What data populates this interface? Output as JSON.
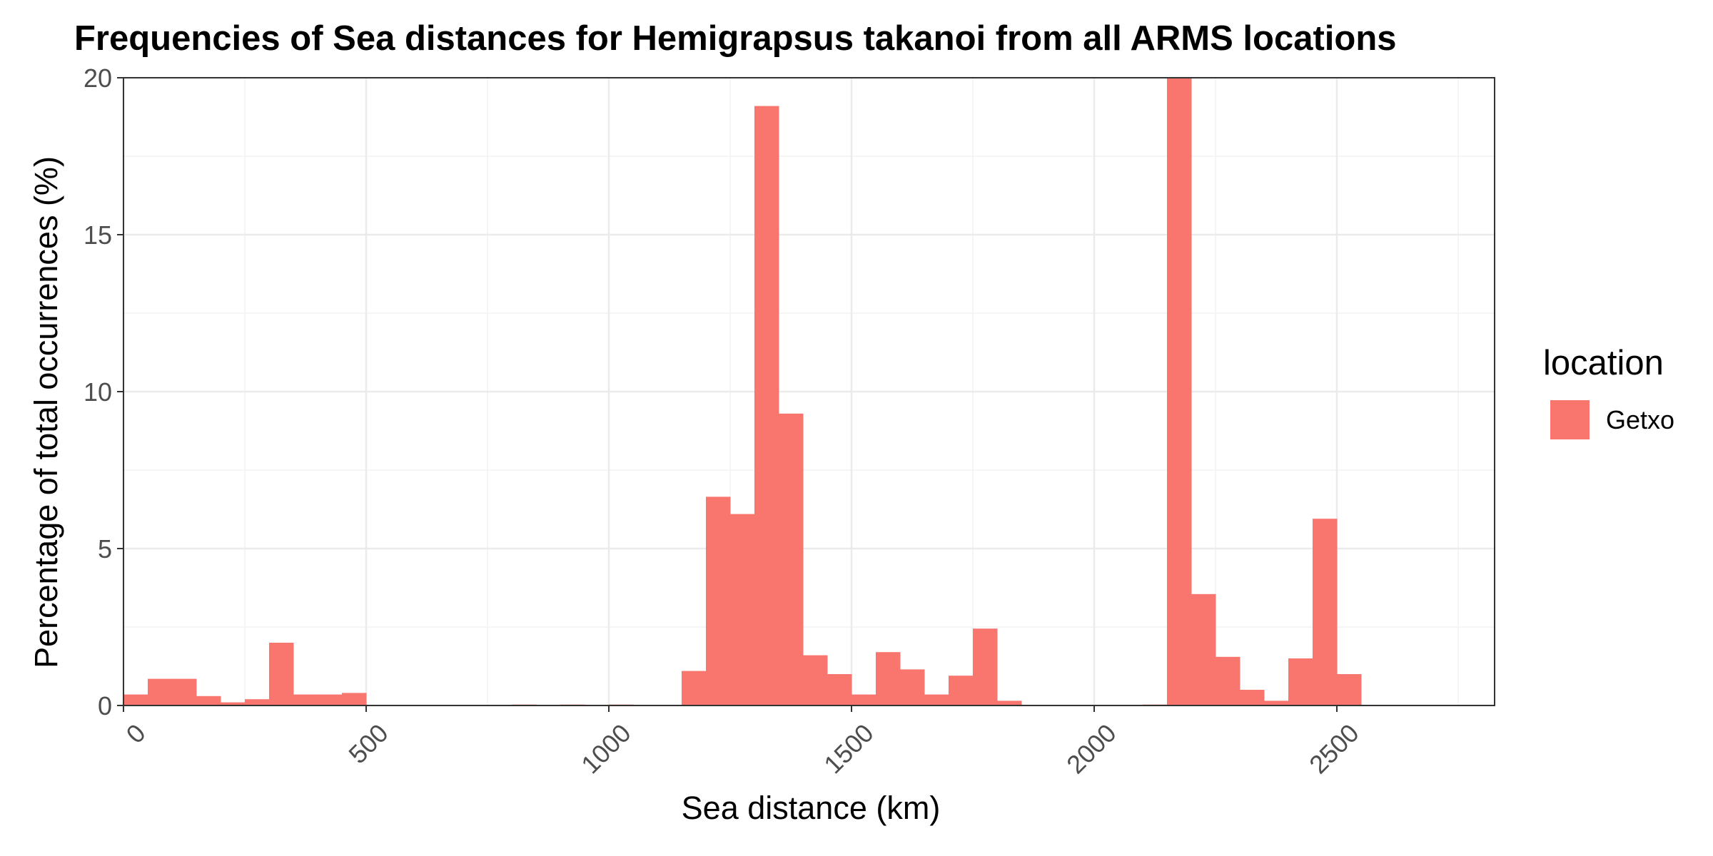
{
  "chart_data": {
    "type": "bar",
    "title": "Frequencies of Sea distances for Hemigrapsus takanoi from all ARMS locations",
    "xlabel": "Sea distance (km)",
    "ylabel": "Percentage of total occurrences (%)",
    "xlim": [
      0,
      2825
    ],
    "ylim": [
      0,
      20
    ],
    "x_ticks": [
      0,
      500,
      1000,
      1500,
      2000,
      2500
    ],
    "x_tick_labels": [
      "0",
      "500",
      "1000",
      "1500",
      "2000",
      "2500"
    ],
    "y_ticks": [
      0,
      5,
      10,
      15,
      20
    ],
    "y_tick_labels": [
      "0",
      "5",
      "10",
      "15",
      "20"
    ],
    "grid": true,
    "legend_title": "location",
    "legend_position": "right",
    "bin_width": 50,
    "series": [
      {
        "name": "Getxo",
        "color": "#F8766D",
        "bins": [
          {
            "start": 0,
            "value": 0.35
          },
          {
            "start": 50,
            "value": 0.85
          },
          {
            "start": 100,
            "value": 0.85
          },
          {
            "start": 150,
            "value": 0.3
          },
          {
            "start": 200,
            "value": 0.1
          },
          {
            "start": 250,
            "value": 0.2
          },
          {
            "start": 300,
            "value": 2.0
          },
          {
            "start": 350,
            "value": 0.35
          },
          {
            "start": 400,
            "value": 0.35
          },
          {
            "start": 450,
            "value": 0.4
          },
          {
            "start": 800,
            "value": 0.03
          },
          {
            "start": 900,
            "value": 0.03
          },
          {
            "start": 1000,
            "value": 0.03
          },
          {
            "start": 1150,
            "value": 1.1
          },
          {
            "start": 1200,
            "value": 6.65
          },
          {
            "start": 1250,
            "value": 6.1
          },
          {
            "start": 1300,
            "value": 19.1
          },
          {
            "start": 1350,
            "value": 9.3
          },
          {
            "start": 1400,
            "value": 1.6
          },
          {
            "start": 1450,
            "value": 1.0
          },
          {
            "start": 1500,
            "value": 0.35
          },
          {
            "start": 1550,
            "value": 1.7
          },
          {
            "start": 1600,
            "value": 1.15
          },
          {
            "start": 1650,
            "value": 0.35
          },
          {
            "start": 1700,
            "value": 0.95
          },
          {
            "start": 1750,
            "value": 2.45
          },
          {
            "start": 1800,
            "value": 0.15
          },
          {
            "start": 2100,
            "value": 0.03
          },
          {
            "start": 2150,
            "value": 20.0
          },
          {
            "start": 2200,
            "value": 3.55
          },
          {
            "start": 2250,
            "value": 1.55
          },
          {
            "start": 2300,
            "value": 0.5
          },
          {
            "start": 2350,
            "value": 0.15
          },
          {
            "start": 2400,
            "value": 1.5
          },
          {
            "start": 2450,
            "value": 5.95
          },
          {
            "start": 2500,
            "value": 1.0
          }
        ]
      }
    ]
  }
}
